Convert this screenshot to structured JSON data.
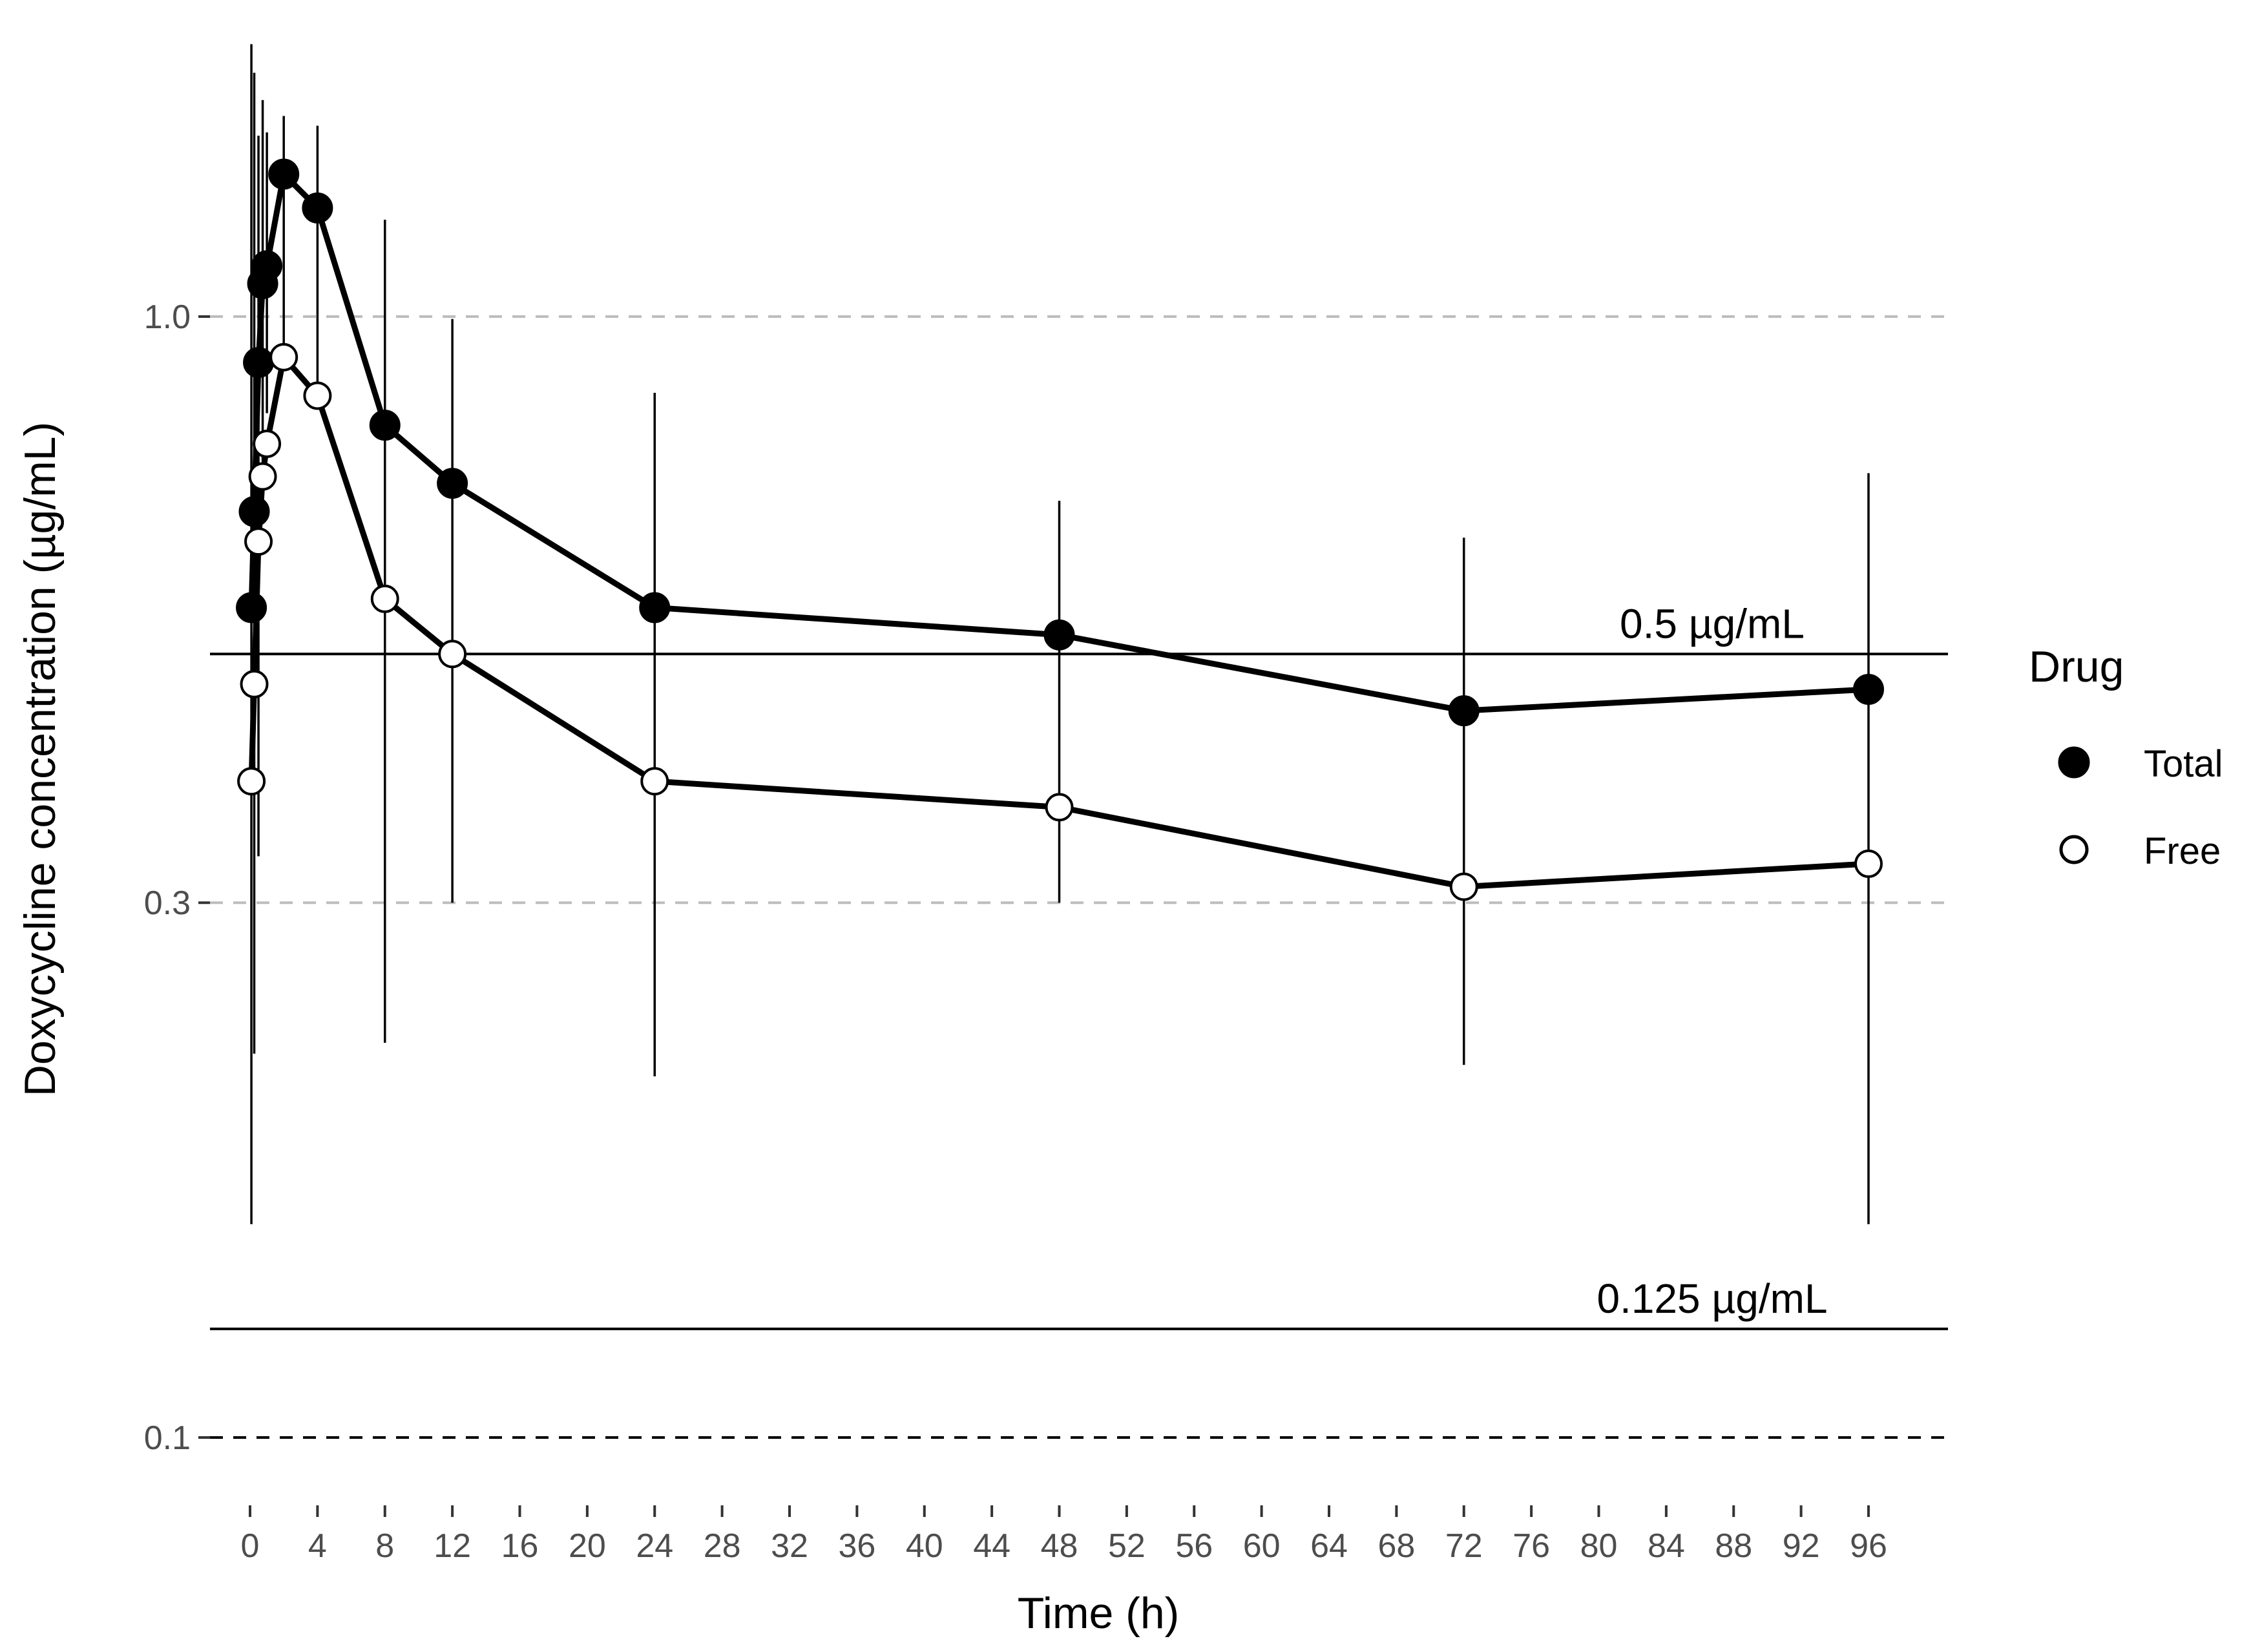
{
  "chart_data": {
    "type": "line",
    "title": "",
    "xlabel": "Time (h)",
    "ylabel": "Doxycycline concentration (µg/mL)",
    "y_scale": "log10",
    "xlim": [
      -1.5,
      100.5
    ],
    "ylim": [
      0.085,
      1.8
    ],
    "x_ticks": [
      0,
      4,
      8,
      12,
      16,
      20,
      24,
      28,
      32,
      36,
      40,
      44,
      48,
      52,
      56,
      60,
      64,
      68,
      72,
      76,
      80,
      84,
      88,
      92,
      96
    ],
    "y_ticks": [
      {
        "value": 0.1,
        "label": "0.1"
      },
      {
        "value": 0.3,
        "label": "0.3"
      },
      {
        "value": 1.0,
        "label": "1.0"
      }
    ],
    "reference_lines": [
      {
        "value": 0.5,
        "label": "0.5 µg/mL"
      },
      {
        "value": 0.125,
        "label": "0.125 µg/mL"
      }
    ],
    "legend": {
      "title": "Drug",
      "position": "right"
    },
    "series": [
      {
        "name": "Total",
        "marker": "filled-circle",
        "x": [
          0.08,
          0.25,
          0.5,
          0.75,
          1,
          2,
          4,
          8,
          12,
          24,
          48,
          72,
          96
        ],
        "y": [
          0.55,
          0.67,
          0.91,
          1.07,
          1.11,
          1.34,
          1.25,
          0.8,
          0.71,
          0.55,
          0.52,
          0.445,
          0.465
        ],
        "ylow": [
          0.155,
          0.22,
          0.33,
          0.7,
          0.82,
          0.92,
          0.87,
          0.225,
          0.3,
          0.21,
          0.3,
          0.215,
          0.155
        ],
        "yhigh": [
          1.75,
          1.65,
          1.45,
          1.56,
          1.46,
          1.51,
          1.48,
          1.22,
          0.995,
          0.855,
          0.685,
          0.635,
          0.725
        ]
      },
      {
        "name": "Free",
        "marker": "open-circle",
        "x": [
          0.08,
          0.25,
          0.5,
          0.75,
          1,
          2,
          4,
          8,
          12,
          24,
          48,
          72,
          96
        ],
        "y": [
          0.385,
          0.47,
          0.63,
          0.72,
          0.77,
          0.92,
          0.85,
          0.56,
          0.5,
          0.385,
          0.365,
          0.31,
          0.325
        ]
      }
    ]
  }
}
